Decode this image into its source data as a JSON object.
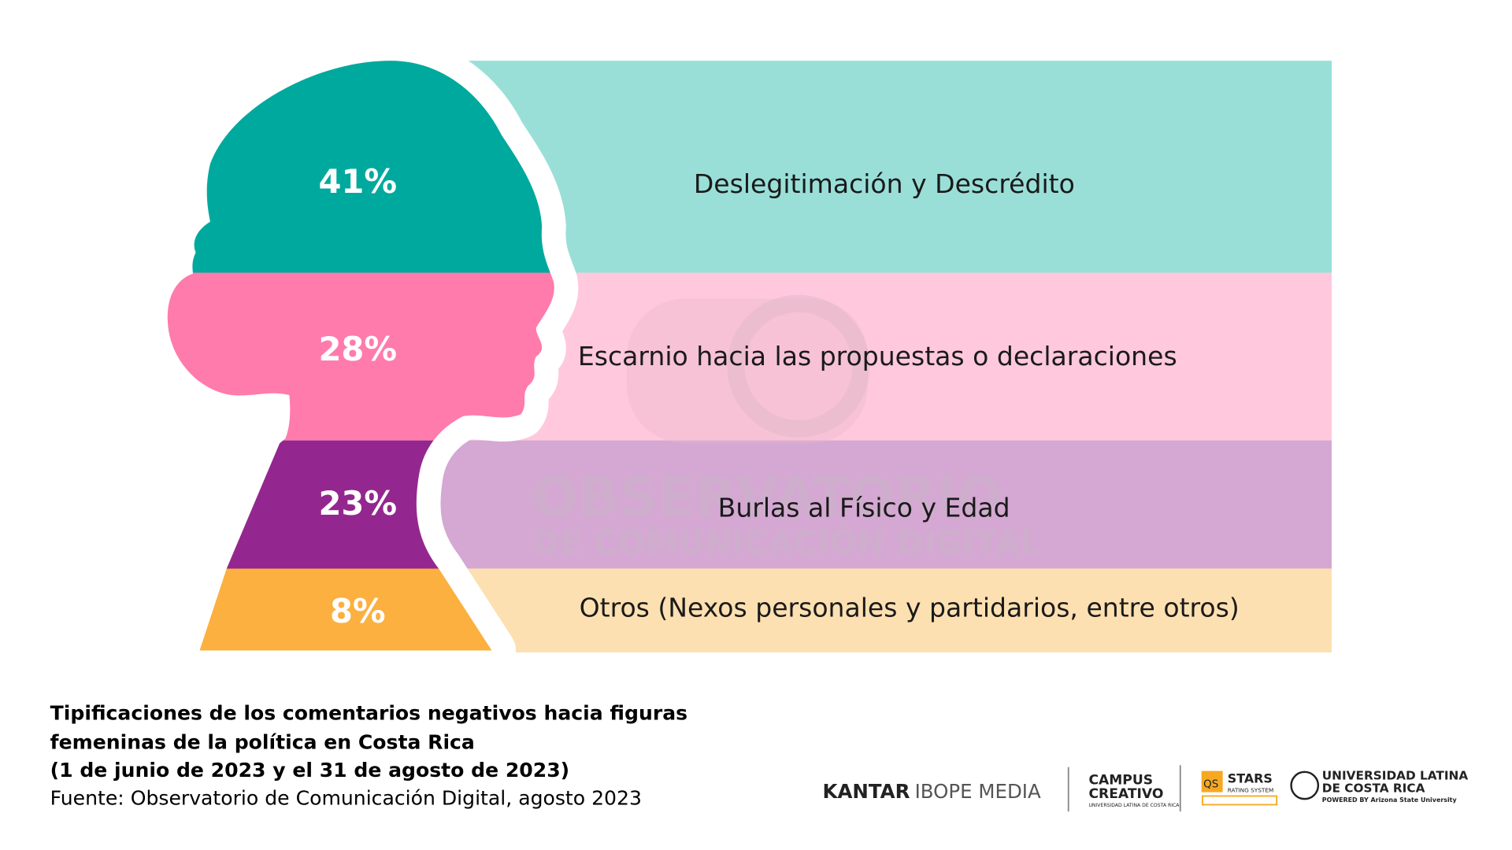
{
  "chart_data": {
    "type": "pie",
    "title": "Tipificaciones de los comentarios negativos hacia figuras femeninas de la política en Costa Rica",
    "title_lines": [
      "Tipificaciones de los comentarios negativos hacia figuras",
      "femeninas de la política en Costa Rica",
      "(1 de junio de 2023 y el 31 de agosto de 2023)"
    ],
    "source": "Fuente: Observatorio de Comunicación Digital, agosto 2023",
    "categories": [
      "Deslegitimación y Descrédito",
      "Escarnio hacia las propuestas o declaraciones",
      "Burlas al Físico y Edad",
      "Otros (Nexos personales y partidarios, entre otros)"
    ],
    "values": [
      41,
      28,
      23,
      8
    ],
    "value_labels": [
      "41%",
      "28%",
      "23%",
      "8%"
    ],
    "colors": [
      "#00a99d",
      "#ff7bac",
      "#93278f",
      "#fbb040"
    ],
    "light_colors": [
      "#99dfd8",
      "#ffc8dc",
      "#d4a8d3",
      "#fde0b1"
    ]
  },
  "watermark": {
    "line1": "OBSERVATORIO",
    "line2": "DE COMUNICACIÓN DIGITAL"
  },
  "logos": {
    "kantar_bold": "KANTAR",
    "kantar_light": "IBOPE MEDIA",
    "campus_1": "CAMPUS",
    "campus_2": "CREATIVO",
    "campus_sub": "UNIVERSIDAD LATINA DE COSTA RICA",
    "qs": "QS",
    "stars": "STARS",
    "stars_sub": "RATING SYSTEM",
    "ulatina_1": "UNIVERSIDAD LATINA",
    "ulatina_2": "DE COSTA RICA",
    "ulatina_sub": "POWERED BY Arizona State University"
  }
}
